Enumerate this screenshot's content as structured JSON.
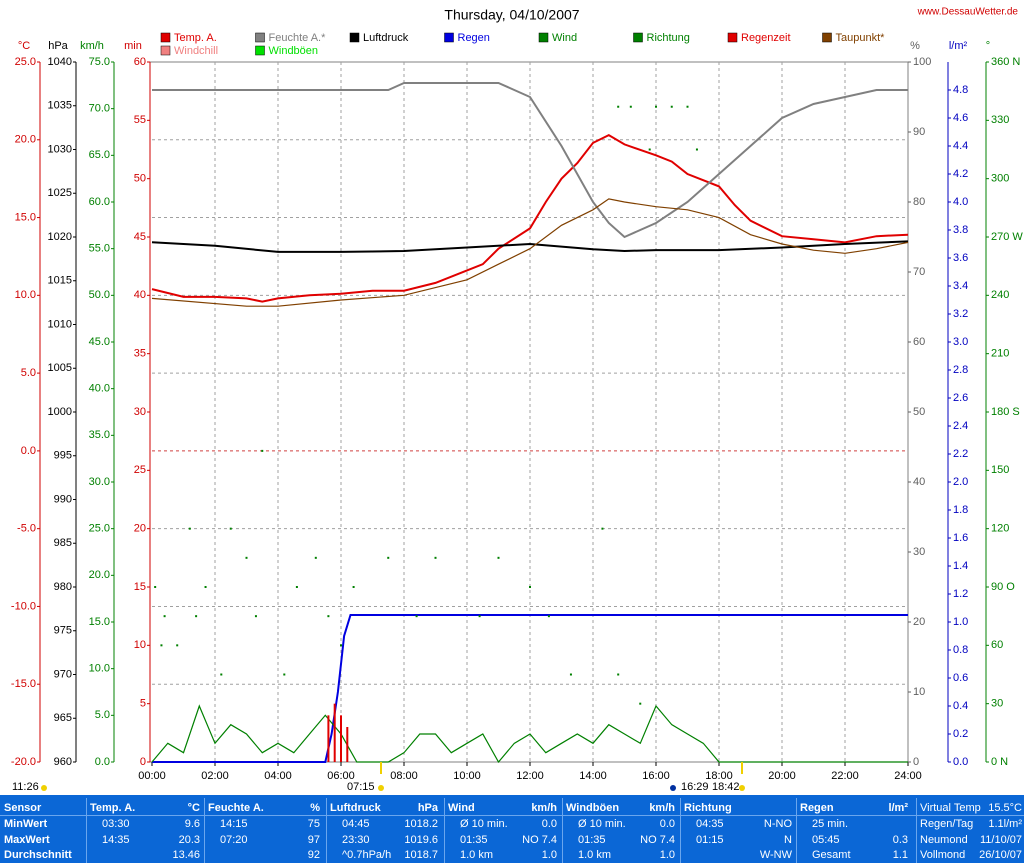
{
  "chart_data": {
    "type": "line",
    "title": "Thursday, 04/10/2007",
    "source": "www.DessauWetter.de",
    "xlim": [
      0,
      24
    ],
    "xticks": [
      {
        "value": 0,
        "label": "00:00"
      },
      {
        "value": 2,
        "label": "02:00"
      },
      {
        "value": 4,
        "label": "04:00"
      },
      {
        "value": 6,
        "label": "06:00"
      },
      {
        "value": 8,
        "label": "08:00"
      },
      {
        "value": 10,
        "label": "10:00"
      },
      {
        "value": 12,
        "label": "12:00"
      },
      {
        "value": 14,
        "label": "14:00"
      },
      {
        "value": 16,
        "label": "16:00"
      },
      {
        "value": 18,
        "label": "18:00"
      },
      {
        "value": 20,
        "label": "20:00"
      },
      {
        "value": 22,
        "label": "22:00"
      },
      {
        "value": 24,
        "label": "24:00"
      }
    ],
    "grid": true,
    "annotations": [
      "11:26",
      "07:15",
      "16:29",
      "18:42"
    ],
    "axes": {
      "temp": {
        "label": "°C",
        "side": "left",
        "color": "#d00000",
        "lim": [
          -20,
          25
        ],
        "ticks": [
          {
            "value": -20,
            "label": "-20.0"
          },
          {
            "value": -15,
            "label": "-15.0"
          },
          {
            "value": -10,
            "label": "-10.0"
          },
          {
            "value": -5,
            "label": "-5.0"
          },
          {
            "value": 0,
            "label": "0.0"
          },
          {
            "value": 5,
            "label": "5.0"
          },
          {
            "value": 10,
            "label": "10.0"
          },
          {
            "value": 15,
            "label": "15.0"
          },
          {
            "value": 20,
            "label": "20.0"
          },
          {
            "value": 25,
            "label": "25.0"
          }
        ]
      },
      "pressure": {
        "label": "hPa",
        "side": "left",
        "color": "#000000",
        "lim": [
          960,
          1040
        ],
        "ticks": [
          960,
          965,
          970,
          975,
          980,
          985,
          990,
          995,
          1000,
          1005,
          1010,
          1015,
          1020,
          1025,
          1030,
          1035,
          1040
        ]
      },
      "wind": {
        "label": "km/h",
        "side": "left",
        "color": "#008000",
        "lim": [
          0,
          75
        ],
        "ticks": [
          {
            "value": 0,
            "label": "0.0"
          },
          {
            "value": 5,
            "label": "5.0"
          },
          {
            "value": 10,
            "label": "10.0"
          },
          {
            "value": 15,
            "label": "15.0"
          },
          {
            "value": 20,
            "label": "20.0"
          },
          {
            "value": 25,
            "label": "25.0"
          },
          {
            "value": 30,
            "label": "30.0"
          },
          {
            "value": 35,
            "label": "35.0"
          },
          {
            "value": 40,
            "label": "40.0"
          },
          {
            "value": 45,
            "label": "45.0"
          },
          {
            "value": 50,
            "label": "50.0"
          },
          {
            "value": 55,
            "label": "55.0"
          },
          {
            "value": 60,
            "label": "60.0"
          },
          {
            "value": 65,
            "label": "65.0"
          },
          {
            "value": 70,
            "label": "70.0"
          },
          {
            "value": 75,
            "label": "75.0"
          }
        ]
      },
      "min": {
        "label": "min",
        "side": "left",
        "color": "#d00000",
        "lim": [
          0,
          60
        ],
        "ticks": [
          0,
          5,
          10,
          15,
          20,
          25,
          30,
          35,
          40,
          45,
          50,
          55,
          60
        ]
      },
      "humidity": {
        "label": "%",
        "side": "right",
        "color": "#606060",
        "lim": [
          0,
          100
        ],
        "ticks": [
          0,
          10,
          20,
          30,
          40,
          50,
          60,
          70,
          80,
          90,
          100
        ]
      },
      "rain": {
        "label": "l/m²",
        "side": "right",
        "color": "#0000c0",
        "lim": [
          0,
          5
        ],
        "ticks": [
          {
            "value": 0,
            "label": "0.0"
          },
          0.2,
          0.4,
          0.6,
          0.8,
          {
            "value": 1,
            "label": "1.0"
          },
          1.2,
          1.4,
          1.6,
          1.8,
          {
            "value": 2,
            "label": "2.0"
          },
          2.2,
          2.4,
          2.6,
          2.8,
          {
            "value": 3,
            "label": "3.0"
          },
          3.2,
          3.4,
          3.6,
          3.8,
          {
            "value": 4,
            "label": "4.0"
          },
          4.2,
          4.4,
          4.6,
          4.8
        ]
      },
      "dir": {
        "label": "°",
        "side": "right",
        "color": "#008000",
        "lim": [
          0,
          360
        ],
        "ticks": [
          {
            "value": 0,
            "label": "0 N"
          },
          30,
          60,
          {
            "value": 90,
            "label": "90 O"
          },
          120,
          150,
          {
            "value": 180,
            "label": "180 S"
          },
          210,
          240,
          {
            "value": 270,
            "label": "270 W"
          },
          300,
          330,
          {
            "value": 360,
            "label": "360 N"
          }
        ]
      }
    },
    "series": [
      {
        "name": "Temp. A.",
        "color": "#e00000",
        "axis": "temp",
        "style": "line",
        "x": [
          0,
          1,
          2,
          3,
          3.5,
          4,
          5,
          6,
          7,
          8,
          9,
          10,
          10.5,
          11,
          12,
          12.5,
          13,
          13.5,
          14,
          14.5,
          15,
          16,
          16.5,
          17,
          18,
          18.5,
          19,
          20,
          21,
          22,
          23,
          24
        ],
        "values": [
          10.4,
          9.9,
          9.9,
          9.8,
          9.6,
          9.8,
          10.0,
          10.1,
          10.3,
          10.3,
          10.8,
          11.6,
          12.0,
          13.0,
          14.3,
          16.0,
          17.5,
          18.5,
          19.8,
          20.3,
          19.7,
          19.0,
          18.6,
          17.8,
          17.0,
          15.8,
          14.8,
          13.8,
          13.6,
          13.4,
          13.8,
          13.9
        ]
      },
      {
        "name": "Feuchte A.*",
        "color": "#808080",
        "axis": "humidity",
        "style": "line",
        "x": [
          0,
          7.5,
          8,
          11,
          11.5,
          12,
          13,
          14,
          14.5,
          15,
          16,
          17,
          18,
          19,
          20,
          21,
          22,
          23,
          24
        ],
        "values": [
          96,
          96,
          97,
          97,
          96,
          95,
          88,
          80,
          77,
          75,
          77,
          80,
          84,
          88,
          92,
          94,
          95,
          96,
          96
        ]
      },
      {
        "name": "Luftdruck",
        "color": "#000000",
        "axis": "pressure",
        "style": "line",
        "x": [
          0,
          2,
          4,
          6,
          8,
          10,
          12,
          14,
          15,
          16,
          18,
          20,
          22,
          24
        ],
        "values": [
          1019.4,
          1019.0,
          1018.3,
          1018.3,
          1018.4,
          1018.8,
          1019.2,
          1018.6,
          1018.4,
          1018.5,
          1018.5,
          1018.8,
          1019.2,
          1019.5
        ]
      },
      {
        "name": "Regen",
        "color": "#0000e0",
        "axis": "rain",
        "style": "line",
        "x": [
          0,
          5.5,
          5.7,
          5.9,
          6.1,
          6.3,
          24
        ],
        "values": [
          0,
          0,
          0.2,
          0.5,
          0.9,
          1.05,
          1.05
        ]
      },
      {
        "name": "Wind",
        "color": "#008000",
        "axis": "wind",
        "style": "line",
        "x": [
          0,
          0.5,
          1,
          1.5,
          2,
          2.5,
          3,
          3.5,
          4,
          4.5,
          5,
          5.5,
          6,
          6.5,
          7,
          7.5,
          8,
          8.5,
          9,
          9.5,
          10,
          10.5,
          11,
          11.5,
          12,
          12.5,
          13,
          13.5,
          14,
          14.5,
          15,
          15.5,
          16,
          16.5,
          17,
          17.5,
          18,
          24
        ],
        "values": [
          0,
          2,
          1,
          6,
          2,
          4,
          3,
          1,
          2,
          1,
          3,
          5,
          3,
          0,
          0,
          0,
          1,
          3,
          3,
          1,
          2,
          3,
          0,
          2,
          3,
          1,
          2,
          3,
          2,
          4,
          3,
          2,
          6,
          4,
          3,
          2,
          0,
          0
        ]
      },
      {
        "name": "Richtung",
        "color": "#008000",
        "axis": "dir",
        "style": "dots",
        "x": [
          0.1,
          0.3,
          0.4,
          0.8,
          1.2,
          1.4,
          1.7,
          2.2,
          2.5,
          3.0,
          3.3,
          3.5,
          4.2,
          4.6,
          5.2,
          5.6,
          6.0,
          6.4,
          7.5,
          8.4,
          9.0,
          10.4,
          11.0,
          12.0,
          12.6,
          13.3,
          14.3,
          14.8,
          14.8,
          15.2,
          15.5,
          15.8,
          16.0,
          16.5,
          17.0,
          17.3
        ],
        "values": [
          90,
          60,
          75,
          60,
          120,
          75,
          90,
          45,
          120,
          105,
          75,
          160,
          45,
          90,
          105,
          75,
          60,
          90,
          105,
          75,
          105,
          75,
          105,
          90,
          75,
          45,
          120,
          45,
          337,
          337,
          30,
          315,
          337,
          337,
          337,
          315
        ]
      },
      {
        "name": "Regenzeit",
        "color": "#e00000",
        "axis": "min",
        "style": "bars",
        "x": [
          5.6,
          5.8,
          6.0,
          6.2
        ],
        "values": [
          4,
          5,
          4,
          3
        ]
      },
      {
        "name": "Taupunkt*",
        "color": "#804000",
        "axis": "temp",
        "style": "line",
        "x": [
          0,
          3,
          4,
          6,
          8,
          10,
          11,
          12,
          13,
          14,
          14.5,
          15,
          16,
          17,
          18,
          19,
          20,
          21,
          22,
          23,
          24
        ],
        "values": [
          9.8,
          9.3,
          9.3,
          9.7,
          10.0,
          11.0,
          12.0,
          13.0,
          14.5,
          15.5,
          16.2,
          16.0,
          15.7,
          15.5,
          15.0,
          13.9,
          13.3,
          12.9,
          12.7,
          13.0,
          13.4
        ]
      },
      {
        "name": "Windchill",
        "color": "#f08080",
        "axis": "temp",
        "style": "line"
      },
      {
        "name": "Windböen",
        "color": "#00e000",
        "axis": "wind",
        "style": "line"
      }
    ]
  },
  "table": {
    "header": [
      "Sensor",
      [
        "Temp. A.",
        "°C"
      ],
      [
        "Feuchte A.",
        "%"
      ],
      [
        "Luftdruck",
        "hPa"
      ],
      [
        "Wind",
        "km/h"
      ],
      [
        "Windböen",
        "km/h"
      ],
      [
        "Richtung"
      ],
      [
        "Regen",
        "l/m²"
      ],
      [
        "Virtual Temp",
        "15.5°C"
      ]
    ],
    "rows": [
      {
        "label": "MinWert",
        "cells": [
          {
            "t": "03:30",
            "v": "9.6"
          },
          {
            "t": "14:15",
            "v": "75"
          },
          {
            "t": "04:45",
            "v": "1018.2"
          },
          {
            "t": "Ø 10 min.",
            "v": "0.0"
          },
          {
            "t": "Ø 10 min.",
            "v": "0.0"
          },
          {
            "t": "04:35",
            "v": "N-NO"
          },
          {
            "t": "25 min."
          },
          {
            "t": "Regen/Tag",
            "v": "1.1l/m²"
          }
        ]
      },
      {
        "label": "MaxWert",
        "cells": [
          {
            "t": "14:35",
            "v": "20.3"
          },
          {
            "t": "07:20",
            "v": "97"
          },
          {
            "t": "23:30",
            "v": "1019.6"
          },
          {
            "t": "01:35",
            "v": "NO 7.4"
          },
          {
            "t": "01:35",
            "v": "NO 7.4"
          },
          {
            "t": "01:15",
            "v": "N"
          },
          {
            "t": "05:45",
            "v": "0.3"
          },
          {
            "t": "Neumond",
            "v": "11/10/07"
          }
        ]
      },
      {
        "label": "Durchschnitt",
        "cells": [
          {
            "v": "13.46"
          },
          {
            "v": "92"
          },
          {
            "t": "^0.7hPa/h",
            "v": "1018.7"
          },
          {
            "t": "1.0 km",
            "v": "1.0"
          },
          {
            "t": "1.0 km",
            "v": "1.0"
          },
          {
            "v": "W-NW"
          },
          {
            "t": "Gesamt",
            "v": "1.1"
          },
          {
            "t": "Vollmond",
            "v": "26/10/07"
          }
        ]
      }
    ]
  }
}
